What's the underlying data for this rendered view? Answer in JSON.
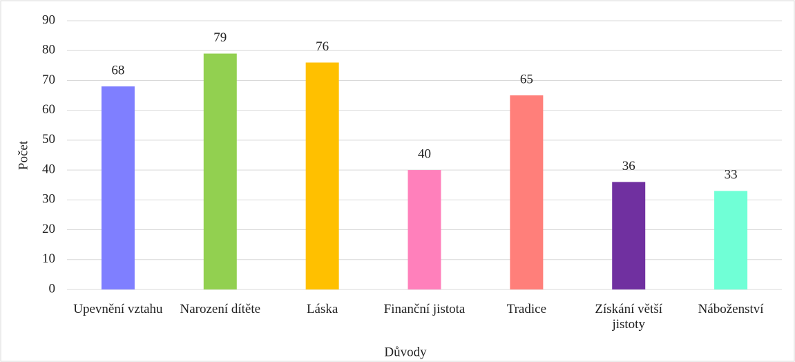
{
  "chart_data": {
    "type": "bar",
    "x_label": "Důvody",
    "y_label": "Počet",
    "categories": [
      "Upevnění vztahu",
      "Narození dítěte",
      "Láska",
      "Finanční jistota",
      "Tradice",
      "Získání větší jistoty",
      "Náboženství"
    ],
    "values": [
      68,
      79,
      76,
      40,
      65,
      36,
      33
    ],
    "colors": [
      "#7f7fff",
      "#92d050",
      "#ffc000",
      "#ff80bb",
      "#ff7f7a",
      "#7030a0",
      "#70ffd6"
    ],
    "ylim": [
      0,
      90
    ],
    "yticks": [
      0,
      10,
      20,
      30,
      40,
      50,
      60,
      70,
      80,
      90
    ],
    "grid": true
  }
}
